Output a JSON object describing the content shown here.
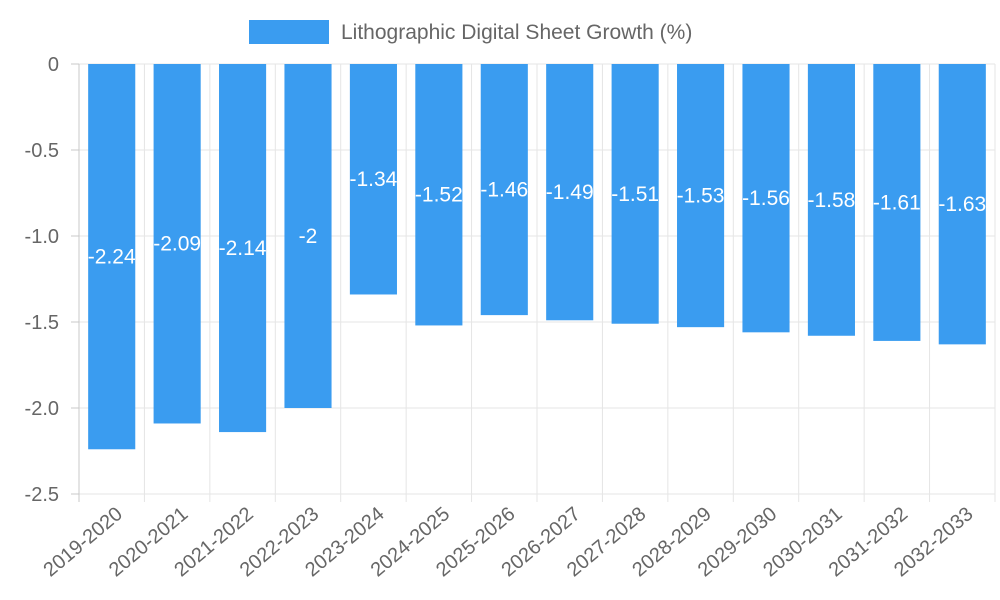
{
  "chart_data": {
    "type": "bar",
    "categories": [
      "2019-2020",
      "2020-2021",
      "2021-2022",
      "2022-2023",
      "2023-2024",
      "2024-2025",
      "2025-2026",
      "2026-2027",
      "2027-2028",
      "2028-2029",
      "2029-2030",
      "2030-2031",
      "2031-2032",
      "2032-2033"
    ],
    "series": [
      {
        "name": "Lithographic Digital Sheet Growth (%)",
        "values": [
          -2.24,
          -2.09,
          -2.14,
          -2,
          -1.34,
          -1.52,
          -1.46,
          -1.49,
          -1.51,
          -1.53,
          -1.56,
          -1.58,
          -1.61,
          -1.63
        ],
        "labels": [
          "-2.24",
          "-2.09",
          "-2.14",
          "-2",
          "-1.34",
          "-1.52",
          "-1.46",
          "-1.49",
          "-1.51",
          "-1.53",
          "-1.56",
          "-1.58",
          "-1.61",
          "-1.63"
        ],
        "color": "#3a9cf0"
      }
    ],
    "yticks": [
      "0",
      "-0.5",
      "-1.0",
      "-1.5",
      "-2.0",
      "-2.5"
    ],
    "ytick_values": [
      0,
      -0.5,
      -1.0,
      -1.5,
      -2.0,
      -2.5
    ],
    "ylim": [
      -2.5,
      0
    ],
    "grid": true,
    "legend_position": "top-center",
    "title": "",
    "xlabel": "",
    "ylabel": ""
  },
  "colors": {
    "grid": "#e5e5e5",
    "axis": "#c8c8c8",
    "text": "#666666"
  }
}
